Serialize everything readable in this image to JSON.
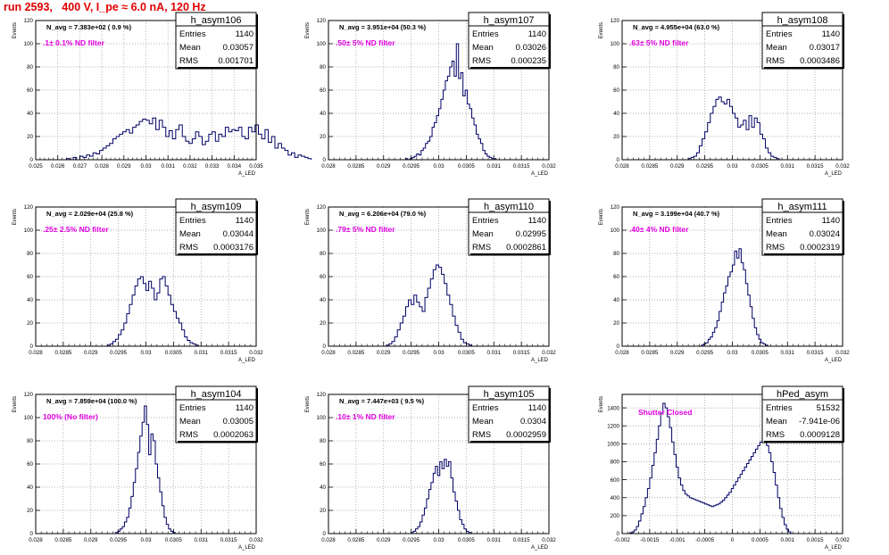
{
  "page_title": "run 2593,   400 V, I_pe ≈ 6.0 nA, 120 Hz",
  "colors": {
    "title": "#e00000",
    "hist": "#000066",
    "magenta": "#e000e0",
    "frame": "#000000",
    "grid": "#9a9a9a"
  },
  "chart_data": [
    {
      "type": "bar",
      "name": "h_asym106",
      "stats": {
        "entries_label": "Entries",
        "entries": "1140",
        "mean_label": "Mean",
        "mean": "0.03057",
        "rms_label": "RMS",
        "rms": "0.001701"
      },
      "n_avg": "N_avg = 7.383e+02 ( 0.9 %)",
      "filter": ".1± 0.1% ND filter",
      "ylabel": "Events",
      "xlabel": "A_LED",
      "xlim": [
        0.025,
        0.035
      ],
      "ylim": [
        0,
        120
      ],
      "xticks": [
        "0.025",
        "0.026",
        "0.027",
        "0.028",
        "0.029",
        "0.03",
        "0.031",
        "0.032",
        "0.033",
        "0.034",
        "0.035"
      ],
      "yticks": [
        "0",
        "20",
        "40",
        "60",
        "80",
        "100",
        "120"
      ],
      "bin_lo": 0.0264,
      "bin_w": 0.00015,
      "values": [
        1,
        0,
        2,
        0,
        3,
        2,
        4,
        3,
        6,
        5,
        8,
        10,
        12,
        14,
        18,
        20,
        22,
        24,
        26,
        23,
        28,
        30,
        33,
        35,
        34,
        31,
        36,
        26,
        34,
        28,
        20,
        25,
        18,
        26,
        30,
        20,
        16,
        14,
        18,
        24,
        20,
        13,
        16,
        22,
        24,
        16,
        22,
        20,
        28,
        24,
        26,
        25,
        28,
        20,
        18,
        28,
        24,
        30,
        22,
        18,
        26,
        15,
        20,
        10,
        14,
        10,
        8,
        4,
        6,
        2,
        4,
        3,
        2,
        1
      ]
    },
    {
      "type": "bar",
      "name": "h_asym107",
      "stats": {
        "entries_label": "Entries",
        "entries": "1140",
        "mean_label": "Mean",
        "mean": "0.03026",
        "rms_label": "RMS",
        "rms": "0.000235"
      },
      "n_avg": "N_avg = 3.951e+04 (50.3 %)",
      "filter": ".50± 5% ND filter",
      "ylabel": "Events",
      "xlabel": "A_LED",
      "xlim": [
        0.028,
        0.032
      ],
      "ylim": [
        0,
        120
      ],
      "xticks": [
        "0.028",
        "0.0285",
        "0.029",
        "0.0295",
        "0.03",
        "0.0305",
        "0.031",
        "0.0315",
        "0.032"
      ],
      "yticks": [
        "0",
        "20",
        "40",
        "60",
        "80",
        "100",
        "120"
      ],
      "bin_lo": 0.0294,
      "bin_w": 4e-05,
      "values": [
        1,
        0,
        1,
        2,
        3,
        5,
        4,
        8,
        10,
        14,
        16,
        20,
        28,
        32,
        38,
        44,
        52,
        60,
        68,
        72,
        80,
        85,
        72,
        100,
        70,
        75,
        55,
        60,
        48,
        44,
        36,
        30,
        22,
        18,
        14,
        8,
        5,
        3,
        2,
        1,
        1
      ]
    },
    {
      "type": "bar",
      "name": "h_asym108",
      "stats": {
        "entries_label": "Entries",
        "entries": "1140",
        "mean_label": "Mean",
        "mean": "0.03017",
        "rms_label": "RMS",
        "rms": "0.0003486"
      },
      "n_avg": "N_avg = 4.955e+04 (63.0 %)",
      "filter": ".63± 5% ND filter",
      "ylabel": "Events",
      "xlabel": "A_LED",
      "xlim": [
        0.028,
        0.032
      ],
      "ylim": [
        0,
        120
      ],
      "xticks": [
        "0.028",
        "0.0285",
        "0.029",
        "0.0295",
        "0.03",
        "0.0305",
        "0.031",
        "0.0315",
        "0.032"
      ],
      "yticks": [
        "0",
        "20",
        "40",
        "60",
        "80",
        "100",
        "120"
      ],
      "bin_lo": 0.0292,
      "bin_w": 5e-05,
      "values": [
        1,
        2,
        3,
        6,
        12,
        18,
        24,
        32,
        40,
        46,
        52,
        54,
        50,
        48,
        52,
        46,
        40,
        36,
        28,
        30,
        34,
        26,
        38,
        28,
        36,
        32,
        22,
        18,
        10,
        6,
        3,
        2,
        1
      ]
    },
    {
      "type": "bar",
      "name": "h_asym109",
      "stats": {
        "entries_label": "Entries",
        "entries": "1140",
        "mean_label": "Mean",
        "mean": "0.03044",
        "rms_label": "RMS",
        "rms": "0.0003176"
      },
      "n_avg": "N_avg = 2.029e+04 (25.8 %)",
      "filter": ".25± 2.5% ND filter",
      "ylabel": "Events",
      "xlabel": "A_LED",
      "xlim": [
        0.028,
        0.032
      ],
      "ylim": [
        0,
        120
      ],
      "xticks": [
        "0.028",
        "0.0285",
        "0.029",
        "0.0295",
        "0.03",
        "0.0305",
        "0.031",
        "0.0315",
        "0.032"
      ],
      "yticks": [
        "0",
        "20",
        "40",
        "60",
        "80",
        "100",
        "120"
      ],
      "bin_lo": 0.0293,
      "bin_w": 5e-05,
      "values": [
        1,
        2,
        4,
        6,
        10,
        14,
        20,
        28,
        36,
        44,
        52,
        58,
        60,
        54,
        48,
        56,
        50,
        40,
        46,
        58,
        60,
        52,
        44,
        36,
        30,
        24,
        20,
        14,
        8,
        5,
        3,
        2,
        1
      ]
    },
    {
      "type": "bar",
      "name": "h_asym110",
      "stats": {
        "entries_label": "Entries",
        "entries": "1140",
        "mean_label": "Mean",
        "mean": "0.02995",
        "rms_label": "RMS",
        "rms": "0.0002861"
      },
      "n_avg": "N_avg = 6.206e+04 (79.0 %)",
      "filter": ".79± 5% ND filter",
      "ylabel": "Events",
      "xlabel": "A_LED",
      "xlim": [
        0.028,
        0.032
      ],
      "ylim": [
        0,
        120
      ],
      "xticks": [
        "0.028",
        "0.0285",
        "0.029",
        "0.0295",
        "0.03",
        "0.0305",
        "0.031",
        "0.0315",
        "0.032"
      ],
      "yticks": [
        "0",
        "20",
        "40",
        "60",
        "80",
        "100",
        "120"
      ],
      "bin_lo": 0.02905,
      "bin_w": 5e-05,
      "values": [
        1,
        2,
        4,
        8,
        14,
        20,
        26,
        34,
        40,
        36,
        44,
        38,
        34,
        30,
        42,
        50,
        58,
        66,
        70,
        68,
        62,
        54,
        44,
        36,
        26,
        18,
        12,
        6,
        3,
        2,
        1
      ]
    },
    {
      "type": "bar",
      "name": "h_asym111",
      "stats": {
        "entries_label": "Entries",
        "entries": "1140",
        "mean_label": "Mean",
        "mean": "0.03024",
        "rms_label": "RMS",
        "rms": "0.0002319"
      },
      "n_avg": "N_avg = 3.199e+04 (40.7 %)",
      "filter": ".40± 4% ND filter",
      "ylabel": "Events",
      "xlabel": "A_LED",
      "xlim": [
        0.028,
        0.032
      ],
      "ylim": [
        0,
        120
      ],
      "xticks": [
        "0.028",
        "0.0285",
        "0.029",
        "0.0295",
        "0.03",
        "0.0305",
        "0.031",
        "0.0315",
        "0.032"
      ],
      "yticks": [
        "0",
        "20",
        "40",
        "60",
        "80",
        "100",
        "120"
      ],
      "bin_lo": 0.02944,
      "bin_w": 4e-05,
      "values": [
        1,
        2,
        3,
        6,
        8,
        12,
        16,
        22,
        30,
        38,
        46,
        52,
        60,
        64,
        70,
        82,
        76,
        84,
        72,
        66,
        54,
        44,
        34,
        24,
        16,
        10,
        6,
        3,
        2,
        1
      ]
    },
    {
      "type": "bar",
      "name": "h_asym104",
      "stats": {
        "entries_label": "Entries",
        "entries": "1140",
        "mean_label": "Mean",
        "mean": "0.03005",
        "rms_label": "RMS",
        "rms": "0.0002063"
      },
      "n_avg": "N_avg = 7.859e+04 (100.0 %)",
      "filter": "100% (No filter)",
      "ylabel": "Events",
      "xlabel": "A_LED",
      "xlim": [
        0.028,
        0.032
      ],
      "ylim": [
        0,
        120
      ],
      "xticks": [
        "0.028",
        "0.0285",
        "0.029",
        "0.0295",
        "0.03",
        "0.0305",
        "0.031",
        "0.0315",
        "0.032"
      ],
      "yticks": [
        "0",
        "20",
        "40",
        "60",
        "80",
        "100",
        "120"
      ],
      "bin_lo": 0.02945,
      "bin_w": 4e-05,
      "values": [
        1,
        2,
        4,
        6,
        10,
        14,
        22,
        32,
        44,
        56,
        70,
        84,
        96,
        110,
        94,
        68,
        86,
        80,
        60,
        48,
        36,
        24,
        14,
        8,
        4,
        2,
        1
      ]
    },
    {
      "type": "bar",
      "name": "h_asym105",
      "stats": {
        "entries_label": "Entries",
        "entries": "1140",
        "mean_label": "Mean",
        "mean": "0.0304",
        "rms_label": "RMS",
        "rms": "0.0002959"
      },
      "n_avg": "N_avg = 7.447e+03 ( 9.5 %)",
      "filter": ".10± 1% ND filter",
      "ylabel": "Events",
      "xlabel": "A_LED",
      "xlim": [
        0.028,
        0.032
      ],
      "ylim": [
        0,
        120
      ],
      "xticks": [
        "0.028",
        "0.0285",
        "0.029",
        "0.0295",
        "0.03",
        "0.0305",
        "0.031",
        "0.0315",
        "0.032"
      ],
      "yticks": [
        "0",
        "20",
        "40",
        "60",
        "80",
        "100",
        "120"
      ],
      "bin_lo": 0.0295,
      "bin_w": 4e-05,
      "values": [
        1,
        2,
        4,
        6,
        10,
        16,
        22,
        30,
        38,
        44,
        52,
        58,
        50,
        62,
        56,
        64,
        58,
        62,
        48,
        36,
        28,
        20,
        12,
        8,
        4,
        2,
        1
      ]
    },
    {
      "type": "bar",
      "name": "hPed_asym",
      "stats": {
        "entries_label": "Entries",
        "entries": "51532",
        "mean_label": "Mean",
        "mean": "-7.941e-06",
        "rms_label": "RMS",
        "rms": "0.0009128"
      },
      "n_avg": "",
      "filter": "Shutter Closed",
      "ylabel": "Events",
      "xlabel": "A_LED",
      "xlim": [
        -0.002,
        0.002
      ],
      "ylim": [
        0,
        1550
      ],
      "xticks": [
        "-0.002",
        "-0.0015",
        "-0.001",
        "-0.0005",
        "0",
        "0.0005",
        "0.001",
        "0.0015",
        "0.002"
      ],
      "yticks": [
        "0",
        "200",
        "400",
        "600",
        "800",
        "1000",
        "1200",
        "1400"
      ],
      "bin_lo": -0.00186,
      "bin_w": 4e-05,
      "values": [
        10,
        20,
        40,
        80,
        140,
        220,
        300,
        400,
        500,
        620,
        760,
        900,
        1050,
        1200,
        1340,
        1450,
        1400,
        1300,
        1180,
        1020,
        880,
        740,
        620,
        540,
        480,
        440,
        420,
        400,
        390,
        380,
        370,
        360,
        350,
        340,
        330,
        320,
        310,
        300,
        310,
        320,
        330,
        350,
        370,
        400,
        430,
        460,
        500,
        540,
        580,
        620,
        660,
        700,
        740,
        780,
        820,
        860,
        900,
        940,
        980,
        1020,
        1040,
        1020,
        980,
        900,
        800,
        680,
        540,
        400,
        280,
        180,
        100,
        50,
        20
      ]
    }
  ]
}
